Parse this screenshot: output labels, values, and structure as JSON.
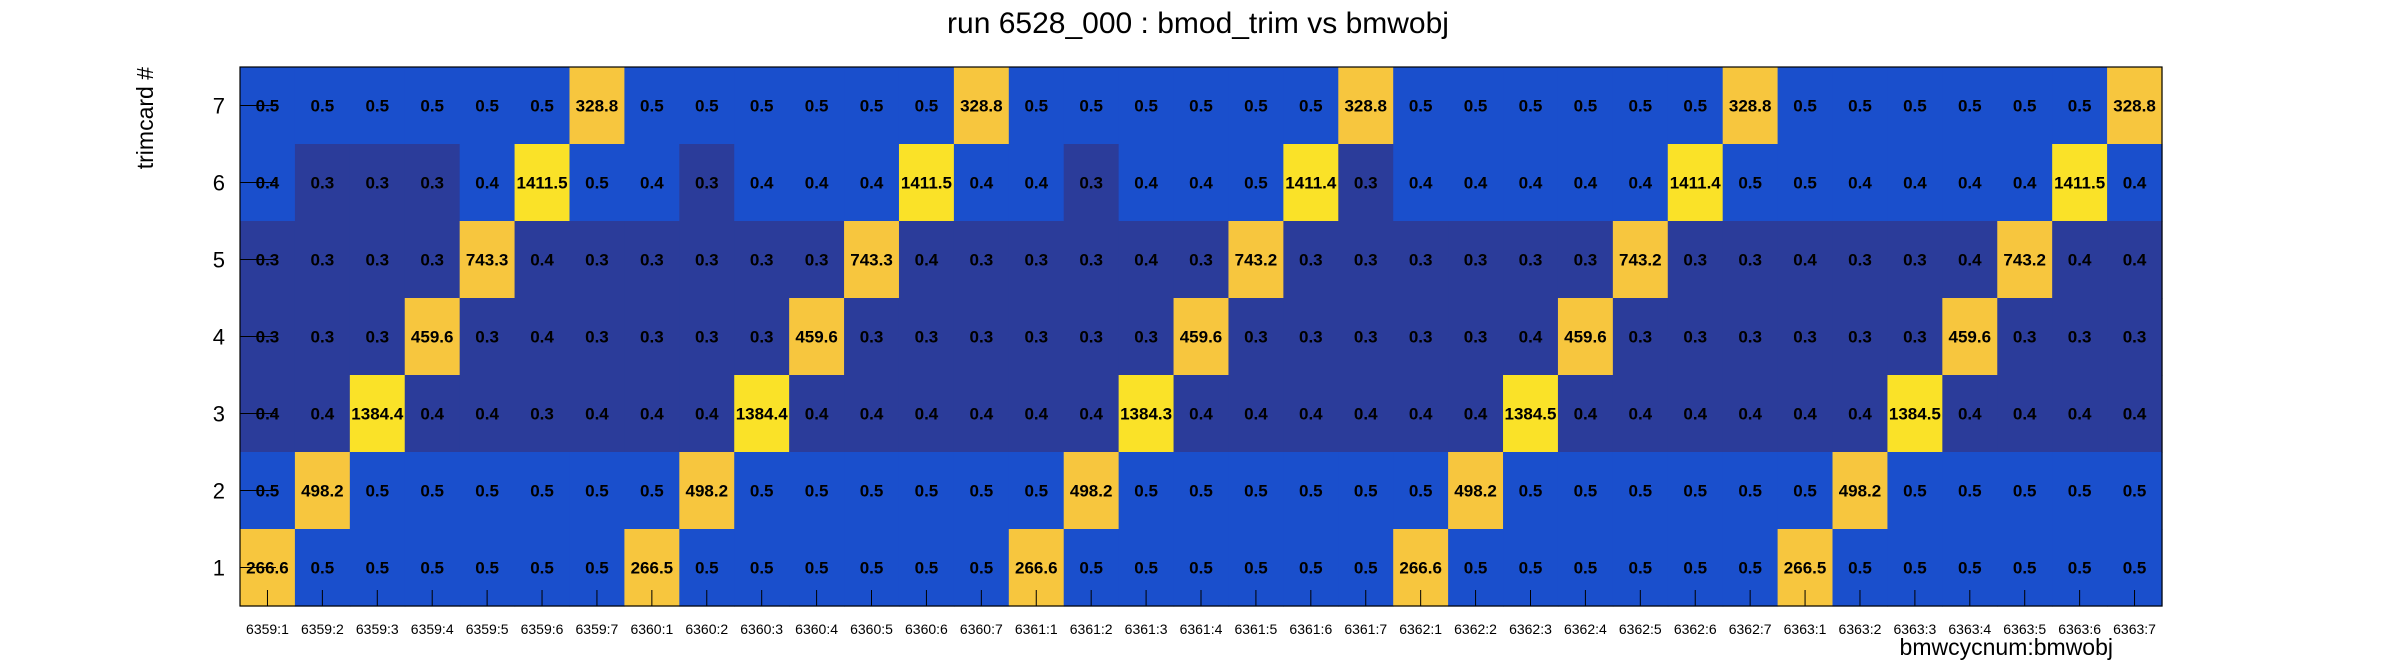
{
  "chart_data": {
    "type": "heatmap",
    "title": "run 6528_000 : bmod_trim vs bmwobj",
    "xlabel": "bmwcycnum:bmwobj",
    "ylabel": "trimcard #",
    "x_categories": [
      "6359:1",
      "6359:2",
      "6359:3",
      "6359:4",
      "6359:5",
      "6359:6",
      "6359:7",
      "6360:1",
      "6360:2",
      "6360:3",
      "6360:4",
      "6360:5",
      "6360:6",
      "6360:7",
      "6361:1",
      "6361:2",
      "6361:3",
      "6361:4",
      "6361:5",
      "6361:6",
      "6361:7",
      "6362:1",
      "6362:2",
      "6362:3",
      "6362:4",
      "6362:5",
      "6362:6",
      "6362:7",
      "6363:1",
      "6363:2",
      "6363:3",
      "6363:4",
      "6363:5",
      "6363:6",
      "6363:7"
    ],
    "y_categories": [
      "1",
      "2",
      "3",
      "4",
      "5",
      "6",
      "7"
    ],
    "rows": [
      {
        "y": "7",
        "values": [
          "0.5",
          "0.5",
          "0.5",
          "0.5",
          "0.5",
          "0.5",
          "328.8",
          "0.5",
          "0.5",
          "0.5",
          "0.5",
          "0.5",
          "0.5",
          "328.8",
          "0.5",
          "0.5",
          "0.5",
          "0.5",
          "0.5",
          "0.5",
          "328.8",
          "0.5",
          "0.5",
          "0.5",
          "0.5",
          "0.5",
          "0.5",
          "328.8",
          "0.5",
          "0.5",
          "0.5",
          "0.5",
          "0.5",
          "0.5",
          "328.8"
        ]
      },
      {
        "y": "6",
        "values": [
          "0.4",
          "0.3",
          "0.3",
          "0.3",
          "0.4",
          "1411.5",
          "0.5",
          "0.4",
          "0.3",
          "0.4",
          "0.4",
          "0.4",
          "1411.5",
          "0.4",
          "0.4",
          "0.3",
          "0.4",
          "0.4",
          "0.5",
          "1411.4",
          "0.3",
          "0.4",
          "0.4",
          "0.4",
          "0.4",
          "0.4",
          "1411.4",
          "0.5",
          "0.5",
          "0.4",
          "0.4",
          "0.4",
          "0.4",
          "1411.5",
          "0.4"
        ]
      },
      {
        "y": "5",
        "values": [
          "0.3",
          "0.3",
          "0.3",
          "0.3",
          "743.3",
          "0.4",
          "0.3",
          "0.3",
          "0.3",
          "0.3",
          "0.3",
          "743.3",
          "0.4",
          "0.3",
          "0.3",
          "0.3",
          "0.4",
          "0.3",
          "743.2",
          "0.3",
          "0.3",
          "0.3",
          "0.3",
          "0.3",
          "0.3",
          "743.2",
          "0.3",
          "0.3",
          "0.4",
          "0.3",
          "0.3",
          "0.4",
          "743.2",
          "0.4",
          "0.4"
        ]
      },
      {
        "y": "4",
        "values": [
          "0.3",
          "0.3",
          "0.3",
          "459.6",
          "0.3",
          "0.4",
          "0.3",
          "0.3",
          "0.3",
          "0.3",
          "459.6",
          "0.3",
          "0.3",
          "0.3",
          "0.3",
          "0.3",
          "0.3",
          "459.6",
          "0.3",
          "0.3",
          "0.3",
          "0.3",
          "0.3",
          "0.4",
          "459.6",
          "0.3",
          "0.3",
          "0.3",
          "0.3",
          "0.3",
          "0.3",
          "459.6",
          "0.3",
          "0.3",
          "0.3"
        ]
      },
      {
        "y": "3",
        "values": [
          "0.4",
          "0.4",
          "1384.4",
          "0.4",
          "0.4",
          "0.3",
          "0.4",
          "0.4",
          "0.4",
          "1384.4",
          "0.4",
          "0.4",
          "0.4",
          "0.4",
          "0.4",
          "0.4",
          "1384.3",
          "0.4",
          "0.4",
          "0.4",
          "0.4",
          "0.4",
          "0.4",
          "1384.5",
          "0.4",
          "0.4",
          "0.4",
          "0.4",
          "0.4",
          "0.4",
          "1384.5",
          "0.4",
          "0.4",
          "0.4",
          "0.4"
        ]
      },
      {
        "y": "2",
        "values": [
          "0.5",
          "498.2",
          "0.5",
          "0.5",
          "0.5",
          "0.5",
          "0.5",
          "0.5",
          "498.2",
          "0.5",
          "0.5",
          "0.5",
          "0.5",
          "0.5",
          "0.5",
          "498.2",
          "0.5",
          "0.5",
          "0.5",
          "0.5",
          "0.5",
          "0.5",
          "498.2",
          "0.5",
          "0.5",
          "0.5",
          "0.5",
          "0.5",
          "0.5",
          "498.2",
          "0.5",
          "0.5",
          "0.5",
          "0.5",
          "0.5"
        ]
      },
      {
        "y": "1",
        "values": [
          "266.6",
          "0.5",
          "0.5",
          "0.5",
          "0.5",
          "0.5",
          "0.5",
          "266.5",
          "0.5",
          "0.5",
          "0.5",
          "0.5",
          "0.5",
          "0.5",
          "266.6",
          "0.5",
          "0.5",
          "0.5",
          "0.5",
          "0.5",
          "0.5",
          "266.6",
          "0.5",
          "0.5",
          "0.5",
          "0.5",
          "0.5",
          "0.5",
          "266.5",
          "0.5",
          "0.5",
          "0.5",
          "0.5",
          "0.5",
          "0.5"
        ]
      }
    ],
    "colors": {
      "dark_blue": "#2b3c9a",
      "blue": "#1a4fcc",
      "orange_yellow": "#f7c63e",
      "yellow": "#fae228"
    }
  }
}
